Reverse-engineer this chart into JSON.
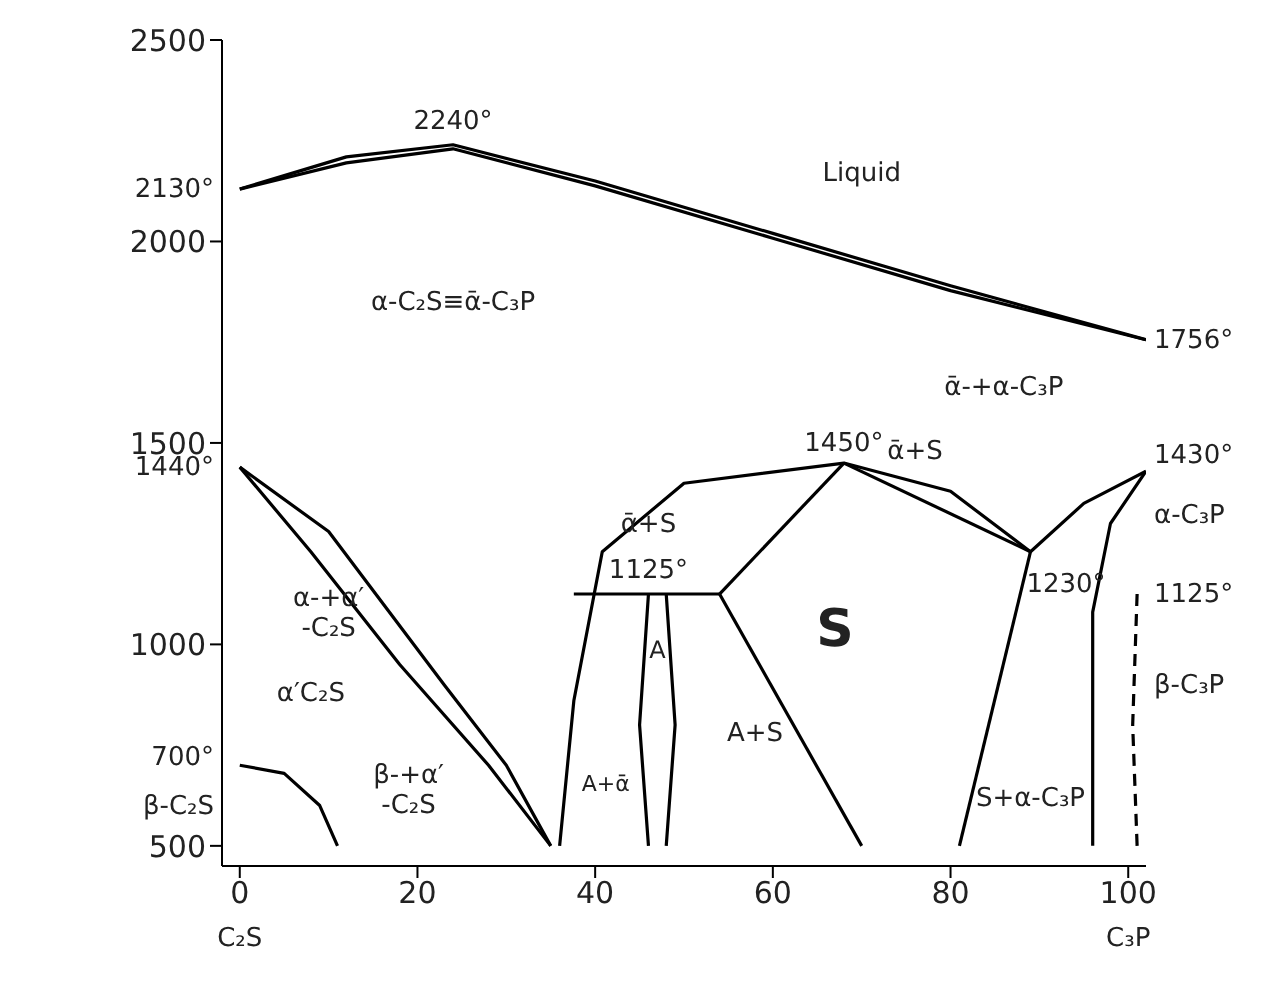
{
  "chart_data": {
    "type": "line",
    "marker": "none",
    "xlim": [
      -2,
      102
    ],
    "ylim": [
      450,
      2500
    ],
    "xticks": [
      0,
      20,
      40,
      60,
      80,
      100
    ],
    "yticks": [
      500,
      1000,
      1500,
      2000,
      2500
    ],
    "series": [
      {
        "color": "#000000",
        "x": [
          0,
          12,
          24,
          40,
          60,
          80,
          102
        ],
        "values": [
          2130,
          2210,
          2240,
          2150,
          2020,
          1890,
          1756
        ]
      },
      {
        "color": "#000000",
        "x": [
          0,
          12,
          24,
          40,
          60,
          80,
          102
        ],
        "values": [
          2130,
          2195,
          2230,
          2138,
          2008,
          1878,
          1756
        ]
      },
      {
        "color": "#000000",
        "x": [
          0,
          10,
          23,
          30,
          35
        ],
        "values": [
          1440,
          1280,
          900,
          700,
          500
        ]
      },
      {
        "color": "#000000",
        "x": [
          0,
          8,
          18,
          28,
          35
        ],
        "values": [
          1440,
          1230,
          950,
          700,
          500
        ]
      },
      {
        "color": "#000000",
        "x": [
          0,
          5,
          9,
          11
        ],
        "values": [
          700,
          680,
          600,
          500
        ]
      },
      {
        "color": "#000000",
        "x": [
          36,
          37.6,
          40.8,
          50,
          68,
          80,
          89
        ],
        "values": [
          500,
          860,
          1230,
          1400,
          1450,
          1380,
          1230
        ]
      },
      {
        "color": "#000000",
        "x": [
          37.6,
          54
        ],
        "values": [
          1125,
          1125
        ]
      },
      {
        "color": "#000000",
        "x": [
          46,
          45,
          46
        ],
        "values": [
          1125,
          800,
          500
        ]
      },
      {
        "color": "#000000",
        "x": [
          48,
          49,
          48
        ],
        "values": [
          1125,
          800,
          500
        ]
      },
      {
        "color": "#000000",
        "x": [
          54,
          70
        ],
        "values": [
          1125,
          500
        ]
      },
      {
        "color": "#000000",
        "x": [
          54,
          68
        ],
        "values": [
          1125,
          1450
        ]
      },
      {
        "color": "#000000",
        "x": [
          68,
          89
        ],
        "values": [
          1450,
          1230
        ]
      },
      {
        "color": "#000000",
        "x": [
          89,
          81
        ],
        "values": [
          1230,
          500
        ]
      },
      {
        "color": "#000000",
        "x": [
          89,
          95,
          102
        ],
        "values": [
          1230,
          1350,
          1430
        ]
      },
      {
        "color": "#000000",
        "x": [
          96,
          96,
          98,
          102
        ],
        "values": [
          500,
          1080,
          1300,
          1430
        ]
      },
      {
        "color": "#000000",
        "line_style": "dashed",
        "x": [
          101,
          100.5,
          101
        ],
        "values": [
          1125,
          800,
          500
        ]
      }
    ],
    "annotations": [
      "C₂S",
      "C₃P",
      "2240°",
      "2130°",
      "1440°",
      "700°",
      "β-C₂S",
      "1756°",
      "1430°",
      "α-C₃P",
      "1125°",
      "β-C₃P",
      "Liquid",
      "α-C₂S≡ᾱ-C₃P",
      "ᾱ-+α-C₃P",
      "1450°",
      "ᾱ+S",
      "ᾱ+S",
      "1125°",
      "1230°",
      "α-+α′\n-C₂S",
      "α′C₂S",
      "β-+α′\n-C₂S",
      "A+ᾱ",
      "A",
      "A+S",
      "S",
      "S+α-C₃P"
    ]
  }
}
